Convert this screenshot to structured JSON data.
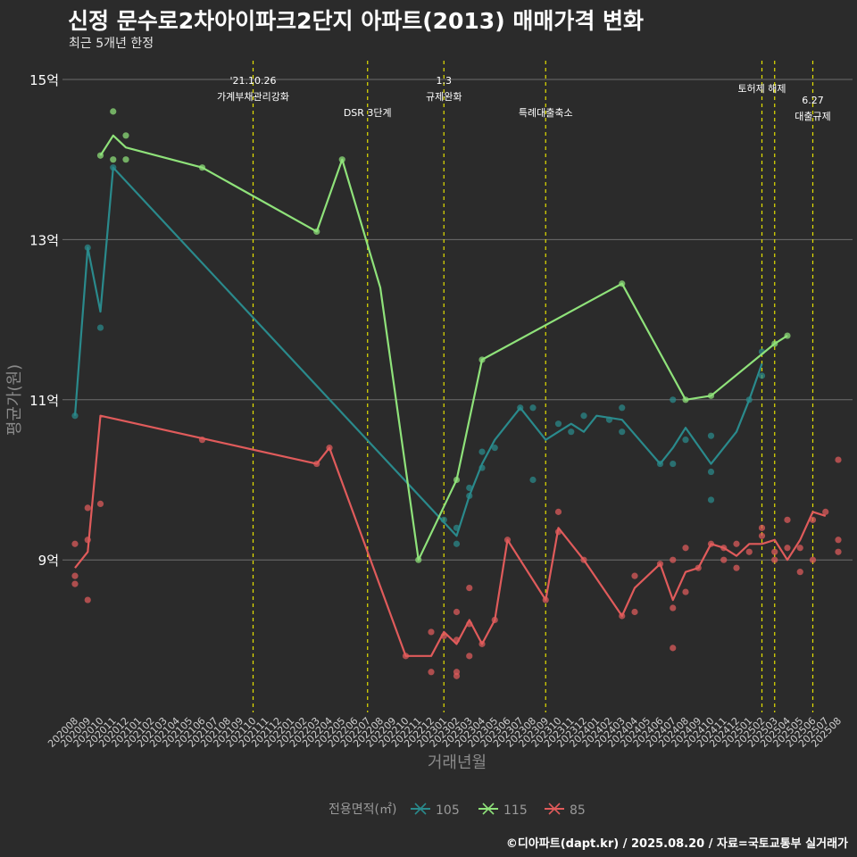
{
  "title": "신정 문수로2차아이파크2단지 아파트(2013) 매매가격 변화",
  "subtitle": "최근 5개년 한정",
  "caption": "©디아파트(dapt.kr) / 2025.08.20 / 자료=국토교통부 실거래가",
  "chart_data": {
    "type": "line",
    "xlabel": "거래년월",
    "ylabel": "평균가(원)",
    "ylim": [
      7.2,
      15.2
    ],
    "y_ticks": [
      9,
      11,
      13,
      15
    ],
    "y_tick_labels": [
      "9억",
      "11억",
      "13억",
      "15억"
    ],
    "categories": [
      "202008",
      "202009",
      "202010",
      "202011",
      "202012",
      "202101",
      "202102",
      "202103",
      "202104",
      "202105",
      "202106",
      "202107",
      "202108",
      "202109",
      "202110",
      "202111",
      "202112",
      "202201",
      "202202",
      "202203",
      "202204",
      "202205",
      "202206",
      "202207",
      "202208",
      "202209",
      "202210",
      "202211",
      "202212",
      "202301",
      "202302",
      "202303",
      "202304",
      "202305",
      "202306",
      "202307",
      "202308",
      "202309",
      "202310",
      "202311",
      "202312",
      "202401",
      "202402",
      "202403",
      "202404",
      "202405",
      "202406",
      "202407",
      "202408",
      "202409",
      "202410",
      "202411",
      "202412",
      "202501",
      "202502",
      "202503",
      "202504",
      "202505",
      "202506",
      "202507",
      "202508"
    ],
    "grid": true,
    "legend_title": "전용면적(㎡)",
    "legend_position": "bottom",
    "series": [
      {
        "name": "105",
        "color": "#2a8a8c",
        "line": [
          [
            0,
            10.8
          ],
          [
            1,
            12.9
          ],
          [
            2,
            12.1
          ],
          [
            3,
            13.9
          ],
          [
            30,
            9.3
          ],
          [
            31,
            9.8
          ],
          [
            32,
            10.2
          ],
          [
            33,
            10.5
          ],
          [
            35,
            10.9
          ],
          [
            37,
            10.5
          ],
          [
            39,
            10.7
          ],
          [
            40,
            10.6
          ],
          [
            41,
            10.8
          ],
          [
            43,
            10.75
          ],
          [
            46,
            10.2
          ],
          [
            47,
            10.4
          ],
          [
            48,
            10.65
          ],
          [
            50,
            10.2
          ],
          [
            52,
            10.6
          ],
          [
            53,
            11.0
          ],
          [
            54,
            11.45
          ]
        ],
        "points": [
          [
            0,
            10.8
          ],
          [
            1,
            12.9
          ],
          [
            2,
            11.9
          ],
          [
            3,
            13.9
          ],
          [
            29,
            9.5
          ],
          [
            30,
            9.4
          ],
          [
            30,
            9.2
          ],
          [
            31,
            9.8
          ],
          [
            31,
            9.9
          ],
          [
            32,
            10.15
          ],
          [
            32,
            10.35
          ],
          [
            33,
            10.4
          ],
          [
            35,
            10.9
          ],
          [
            36,
            10.9
          ],
          [
            36,
            10.0
          ],
          [
            38,
            10.7
          ],
          [
            39,
            10.6
          ],
          [
            40,
            10.8
          ],
          [
            42,
            10.75
          ],
          [
            43,
            10.9
          ],
          [
            43,
            10.6
          ],
          [
            46,
            10.2
          ],
          [
            47,
            10.2
          ],
          [
            47,
            11.0
          ],
          [
            48,
            10.5
          ],
          [
            50,
            10.1
          ],
          [
            50,
            10.55
          ],
          [
            50,
            9.75
          ],
          [
            53,
            11.0
          ],
          [
            54,
            11.3
          ],
          [
            54,
            11.6
          ]
        ]
      },
      {
        "name": "115",
        "color": "#8fe27a",
        "line": [
          [
            2,
            14.05
          ],
          [
            3,
            14.3
          ],
          [
            4,
            14.15
          ],
          [
            10,
            13.9
          ],
          [
            19,
            13.1
          ],
          [
            21,
            14.0
          ],
          [
            24,
            12.4
          ],
          [
            27,
            9.0
          ],
          [
            30,
            10.0
          ],
          [
            32,
            11.5
          ],
          [
            43,
            12.45
          ],
          [
            48,
            11.0
          ],
          [
            50,
            11.05
          ],
          [
            55,
            11.7
          ],
          [
            56,
            11.8
          ]
        ],
        "points": [
          [
            2,
            14.05
          ],
          [
            3,
            14.0
          ],
          [
            3,
            14.6
          ],
          [
            4,
            14.0
          ],
          [
            4,
            14.3
          ],
          [
            10,
            13.9
          ],
          [
            19,
            13.1
          ],
          [
            21,
            14.0
          ],
          [
            27,
            9.0
          ],
          [
            30,
            10.0
          ],
          [
            32,
            11.5
          ],
          [
            43,
            12.45
          ],
          [
            48,
            11.0
          ],
          [
            50,
            11.05
          ],
          [
            55,
            11.7
          ],
          [
            56,
            11.8
          ]
        ]
      },
      {
        "name": "85",
        "color": "#e05b5b",
        "line": [
          [
            0,
            8.9
          ],
          [
            1,
            9.1
          ],
          [
            2,
            10.8
          ],
          [
            19,
            10.2
          ],
          [
            20,
            10.4
          ],
          [
            26,
            7.8
          ],
          [
            28,
            7.8
          ],
          [
            29,
            8.1
          ],
          [
            30,
            7.95
          ],
          [
            31,
            8.25
          ],
          [
            32,
            7.95
          ],
          [
            33,
            8.25
          ],
          [
            34,
            9.25
          ],
          [
            37,
            8.5
          ],
          [
            38,
            9.4
          ],
          [
            40,
            9.0
          ],
          [
            43,
            8.3
          ],
          [
            44,
            8.65
          ],
          [
            46,
            8.95
          ],
          [
            47,
            8.5
          ],
          [
            48,
            8.85
          ],
          [
            49,
            8.9
          ],
          [
            50,
            9.2
          ],
          [
            51,
            9.15
          ],
          [
            52,
            9.05
          ],
          [
            53,
            9.2
          ],
          [
            54,
            9.2
          ],
          [
            55,
            9.25
          ],
          [
            56,
            9.0
          ],
          [
            57,
            9.25
          ],
          [
            58,
            9.6
          ],
          [
            59,
            9.55
          ]
        ],
        "points": [
          [
            0,
            9.2
          ],
          [
            0,
            8.8
          ],
          [
            0,
            8.7
          ],
          [
            1,
            9.65
          ],
          [
            1,
            9.25
          ],
          [
            1,
            8.5
          ],
          [
            2,
            9.7
          ],
          [
            10,
            10.5
          ],
          [
            19,
            10.2
          ],
          [
            20,
            10.4
          ],
          [
            26,
            7.8
          ],
          [
            28,
            8.1
          ],
          [
            28,
            7.6
          ],
          [
            29,
            8.05
          ],
          [
            30,
            8.35
          ],
          [
            30,
            8.0
          ],
          [
            30,
            7.6
          ],
          [
            30,
            7.55
          ],
          [
            31,
            8.2
          ],
          [
            31,
            7.8
          ],
          [
            31,
            8.65
          ],
          [
            32,
            7.95
          ],
          [
            33,
            8.25
          ],
          [
            34,
            9.25
          ],
          [
            37,
            8.5
          ],
          [
            38,
            9.6
          ],
          [
            38,
            9.35
          ],
          [
            40,
            9.0
          ],
          [
            43,
            8.3
          ],
          [
            44,
            8.35
          ],
          [
            44,
            8.8
          ],
          [
            46,
            8.95
          ],
          [
            47,
            9.0
          ],
          [
            47,
            8.4
          ],
          [
            47,
            7.9
          ],
          [
            48,
            8.6
          ],
          [
            48,
            9.15
          ],
          [
            49,
            8.9
          ],
          [
            50,
            9.2
          ],
          [
            51,
            9.15
          ],
          [
            51,
            9.0
          ],
          [
            52,
            9.2
          ],
          [
            52,
            8.9
          ],
          [
            53,
            9.1
          ],
          [
            54,
            9.3
          ],
          [
            54,
            9.4
          ],
          [
            55,
            9.0
          ],
          [
            55,
            9.1
          ],
          [
            56,
            9.5
          ],
          [
            56,
            9.15
          ],
          [
            57,
            9.15
          ],
          [
            57,
            8.85
          ],
          [
            58,
            9.5
          ],
          [
            58,
            9.0
          ],
          [
            59,
            9.6
          ],
          [
            60,
            10.25
          ],
          [
            60,
            9.25
          ],
          [
            60,
            9.1
          ]
        ]
      }
    ],
    "event_lines": [
      {
        "x": 14,
        "labels": [
          "'21.10.26",
          "가계부채관리강화"
        ],
        "level": 0
      },
      {
        "x": 23,
        "labels": [
          "DSR 3단계"
        ],
        "level": 2
      },
      {
        "x": 29,
        "labels": [
          "1.3",
          "규제완화"
        ],
        "level": 0
      },
      {
        "x": 37,
        "labels": [
          "특례대출축소"
        ],
        "level": 2
      },
      {
        "x": 54,
        "labels": [
          "토허제 해제"
        ],
        "level": 1
      },
      {
        "x": 55,
        "labels": [],
        "level": 1
      },
      {
        "x": 58,
        "labels": [
          "6.27",
          "대출규제"
        ],
        "level": 3
      }
    ]
  }
}
